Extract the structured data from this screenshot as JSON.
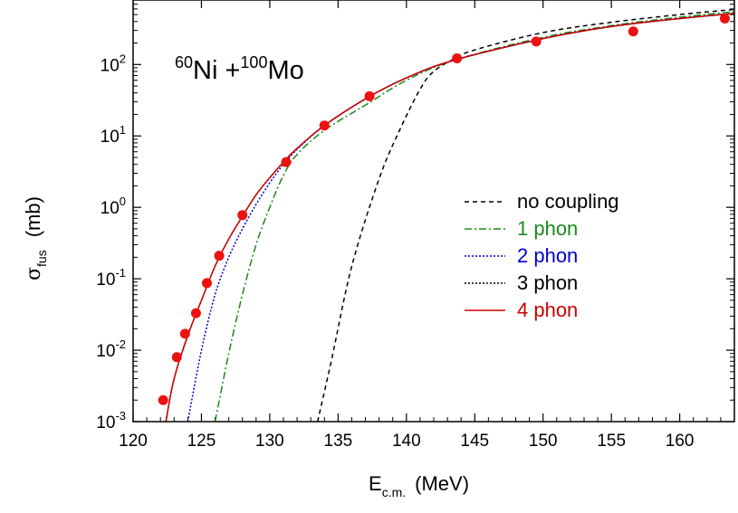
{
  "chart_data": {
    "type": "line",
    "title": "",
    "annotation": {
      "sup1": "60",
      "el1": "Ni +",
      "sup2": "100",
      "el2": "Mo"
    },
    "xlabel": {
      "main": "E",
      "sub": "c.m.",
      "unit": "(MeV)"
    },
    "ylabel": {
      "main": "σ",
      "sub": "fus",
      "unit": "(mb)"
    },
    "xlim": [
      120,
      164
    ],
    "ylim": [
      0.001,
      800
    ],
    "yscale": "log",
    "x_ticks": [
      120,
      125,
      130,
      135,
      140,
      145,
      150,
      155,
      160
    ],
    "y_ticks": [
      {
        "value": 0.001,
        "base": "10",
        "exp": "-3"
      },
      {
        "value": 0.01,
        "base": "10",
        "exp": "-2"
      },
      {
        "value": 0.1,
        "base": "10",
        "exp": "-1"
      },
      {
        "value": 1,
        "base": "10",
        "exp": "0"
      },
      {
        "value": 10,
        "base": "10",
        "exp": "1"
      },
      {
        "value": 100,
        "base": "10",
        "exp": "2"
      }
    ],
    "legend_position": "right",
    "series": [
      {
        "name": "no coupling",
        "color": "#000000",
        "dash": "5,4",
        "width": 1.5,
        "x": [
          133.5,
          134.5,
          136,
          138,
          139.5,
          141,
          142,
          143.5,
          145,
          150,
          155,
          160,
          164
        ],
        "y": [
          0.001,
          0.007,
          0.15,
          2.5,
          12,
          45,
          80,
          120,
          160,
          280,
          390,
          500,
          590
        ]
      },
      {
        "name": "1 phon",
        "color": "#1b8a1b",
        "dash": "8,3,2,3",
        "width": 1.5,
        "x": [
          126,
          127,
          128,
          129,
          130,
          131,
          132,
          134,
          137,
          140,
          143.5,
          150,
          155,
          160,
          164
        ],
        "y": [
          0.001,
          0.009,
          0.06,
          0.3,
          1.0,
          2.8,
          5.5,
          12,
          27,
          60,
          115,
          240,
          350,
          460,
          550
        ]
      },
      {
        "name": "2 phon",
        "color": "#0000cc",
        "dash": "2,2",
        "width": 1.5,
        "x": [
          124,
          125,
          126,
          127,
          128,
          129,
          130,
          131,
          132,
          134,
          137,
          140,
          143.5,
          150,
          155,
          160,
          164
        ],
        "y": [
          0.001,
          0.01,
          0.06,
          0.2,
          0.5,
          1.1,
          2.2,
          4.0,
          6.5,
          14,
          33,
          65,
          115,
          230,
          340,
          440,
          520
        ]
      },
      {
        "name": "3 phon",
        "color": "#000000",
        "dash": "2,2",
        "width": 1.5,
        "x": [
          122.4,
          123,
          124,
          125,
          126,
          127,
          128,
          129,
          130,
          131,
          132,
          134,
          137,
          140,
          143.5,
          150,
          155,
          160,
          164
        ],
        "y": [
          0.001,
          0.004,
          0.016,
          0.05,
          0.15,
          0.36,
          0.75,
          1.5,
          2.6,
          4.3,
          6.7,
          14,
          33,
          65,
          115,
          230,
          340,
          440,
          520
        ]
      },
      {
        "name": "4 phon",
        "color": "#cc0000",
        "dash": "",
        "width": 1.5,
        "x": [
          122.4,
          123,
          124,
          125,
          126,
          127,
          128,
          129,
          130,
          131,
          132,
          134,
          137,
          140,
          143.5,
          150,
          155,
          160,
          164
        ],
        "y": [
          0.001,
          0.004,
          0.016,
          0.05,
          0.15,
          0.36,
          0.75,
          1.5,
          2.6,
          4.3,
          6.7,
          14,
          33,
          65,
          115,
          230,
          340,
          440,
          520
        ]
      }
    ],
    "points": {
      "color": "#ee1111",
      "x": [
        122.2,
        123.2,
        123.8,
        124.6,
        125.4,
        126.3,
        128.0,
        131.2,
        134.0,
        137.3,
        143.7,
        149.5,
        156.6,
        163.3
      ],
      "y": [
        0.002,
        0.008,
        0.017,
        0.033,
        0.087,
        0.21,
        0.78,
        4.3,
        14.0,
        36,
        122,
        210,
        290,
        440
      ]
    }
  }
}
